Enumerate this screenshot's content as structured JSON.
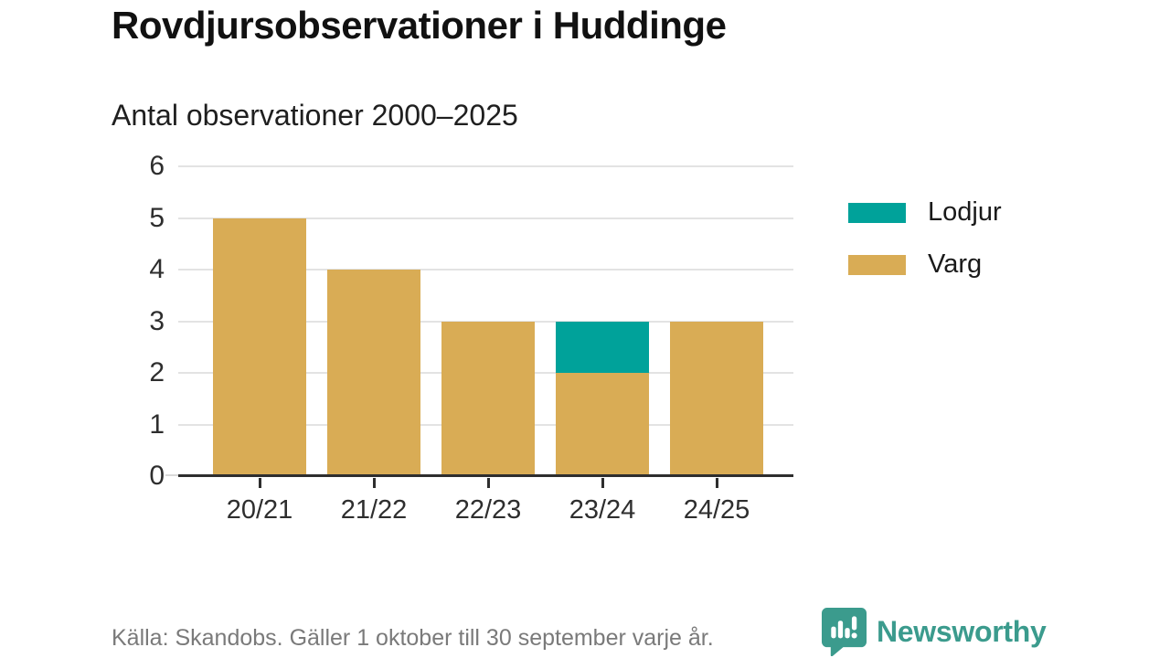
{
  "header": {
    "title": "Rovdjursobservationer i Huddinge",
    "subtitle": "Antal observationer 2000–2025"
  },
  "chart_data": {
    "type": "bar",
    "stacked": true,
    "title": "Rovdjursobservationer i Huddinge",
    "subtitle": "Antal observationer 2000–2025",
    "categories": [
      "20/21",
      "21/22",
      "22/23",
      "23/24",
      "24/25"
    ],
    "series": [
      {
        "name": "Varg",
        "color": "#D9AC55",
        "values": [
          5,
          4,
          3,
          2,
          3
        ]
      },
      {
        "name": "Lodjur",
        "color": "#00A29A",
        "values": [
          0,
          0,
          0,
          1,
          0
        ]
      }
    ],
    "totals": [
      5,
      4,
      3,
      3,
      3
    ],
    "xlabel": "",
    "ylabel": "",
    "ylim": [
      0,
      6
    ],
    "yticks": [
      0,
      1,
      2,
      3,
      4,
      5,
      6
    ],
    "grid": true,
    "legend_position": "right",
    "legend": [
      {
        "label": "Lodjur",
        "color": "#00A29A"
      },
      {
        "label": "Varg",
        "color": "#D9AC55"
      }
    ]
  },
  "footer": {
    "source": "Källa: Skandobs. Gäller 1 oktober till 30 september varje år.",
    "brand": "Newsworthy"
  },
  "colors": {
    "varg": "#D9AC55",
    "lodjur": "#00A29A",
    "grid": "#E3E3E3",
    "axis": "#2E2E2E",
    "brand_teal": "#3B9B8D",
    "text_dark": "#111111",
    "text_gray": "#7A7A7A",
    "background": "#FFFFFF"
  }
}
